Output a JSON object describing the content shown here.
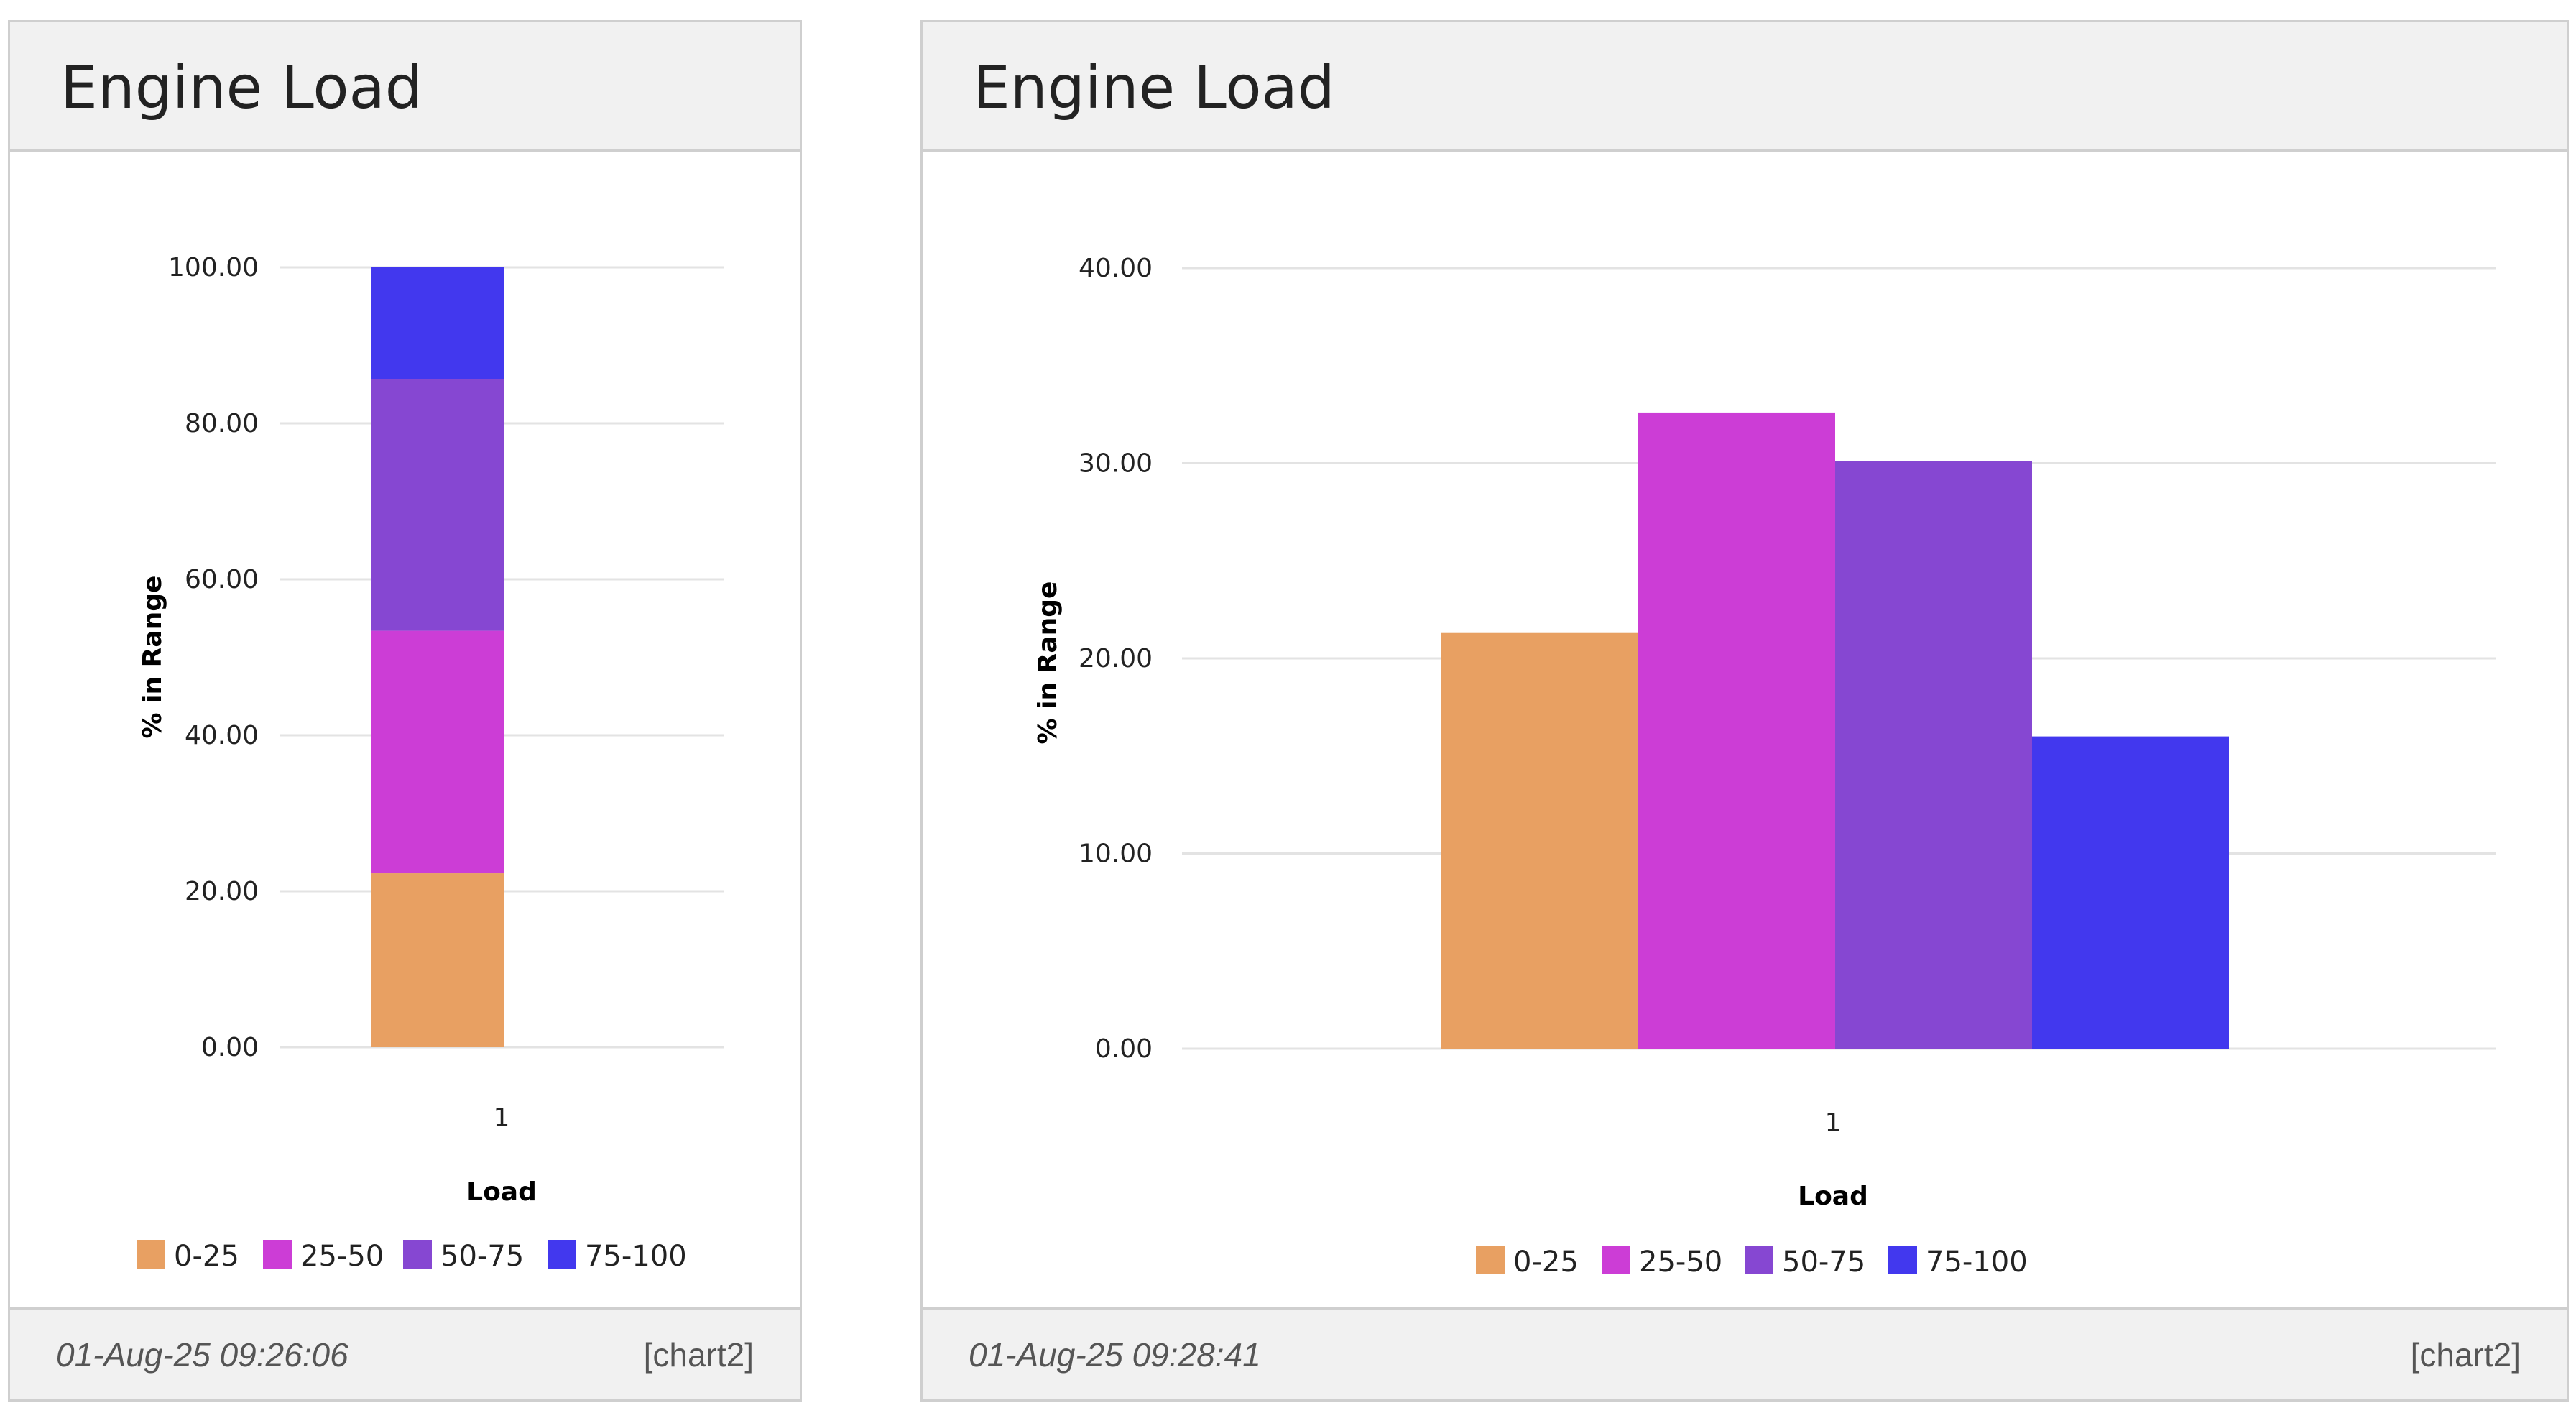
{
  "panels": [
    {
      "title": "Engine Load",
      "timestamp": "01-Aug-25 09:26:06",
      "chart_ref": "[chart2]"
    },
    {
      "title": "Engine Load",
      "timestamp": "01-Aug-25 09:28:41",
      "chart_ref": "[chart2]"
    }
  ],
  "chart_data": [
    {
      "type": "bar",
      "stacked": true,
      "categories": [
        "1"
      ],
      "series": [
        {
          "name": "0-25",
          "values": [
            22.3
          ],
          "color": "#E8A062"
        },
        {
          "name": "25-50",
          "values": [
            31.1
          ],
          "color": "#CC3DD6"
        },
        {
          "name": "50-75",
          "values": [
            32.3
          ],
          "color": "#8647D2"
        },
        {
          "name": "75-100",
          "values": [
            14.3
          ],
          "color": "#4238EE"
        }
      ],
      "xlabel": "Load",
      "ylabel": "% in Range",
      "ylim": [
        0,
        100
      ],
      "yticks": [
        "0.00",
        "20.00",
        "40.00",
        "60.00",
        "80.00",
        "100.00"
      ],
      "grid": true,
      "legend": "bottom"
    },
    {
      "type": "bar",
      "stacked": false,
      "categories": [
        "1"
      ],
      "series": [
        {
          "name": "0-25",
          "values": [
            21.3
          ],
          "color": "#E8A062"
        },
        {
          "name": "25-50",
          "values": [
            32.6
          ],
          "color": "#CC3DD6"
        },
        {
          "name": "50-75",
          "values": [
            30.1
          ],
          "color": "#8647D2"
        },
        {
          "name": "75-100",
          "values": [
            16.0
          ],
          "color": "#4238EE"
        }
      ],
      "xlabel": "Load",
      "ylabel": "% in Range",
      "ylim": [
        0,
        40
      ],
      "yticks": [
        "0.00",
        "10.00",
        "20.00",
        "30.00",
        "40.00"
      ],
      "grid": true,
      "legend": "bottom"
    }
  ]
}
